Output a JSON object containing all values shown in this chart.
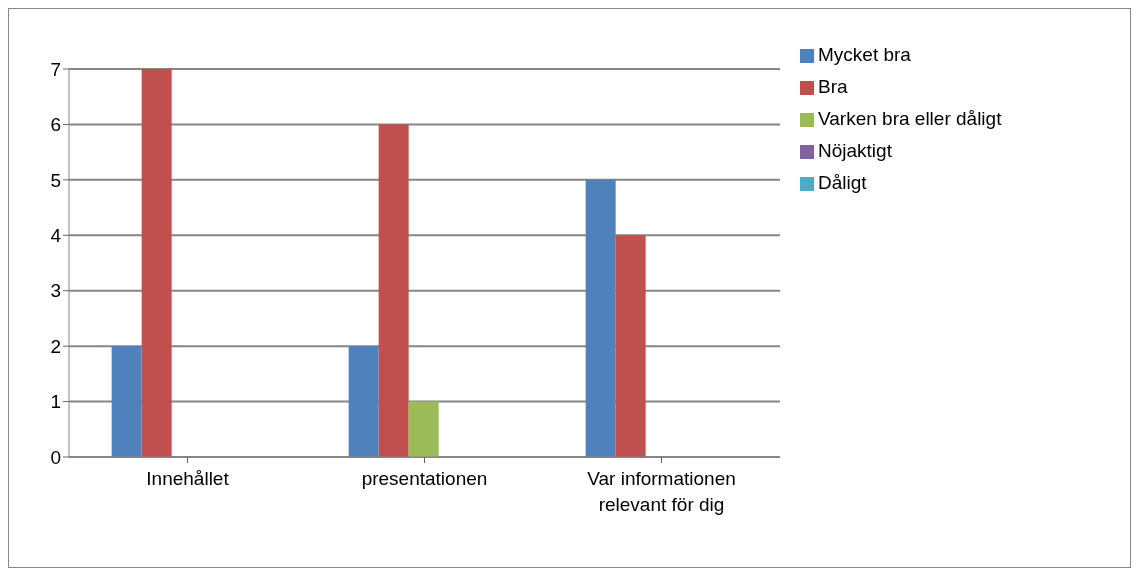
{
  "chart_data": {
    "type": "bar",
    "categories": [
      "Innehållet",
      "presentationen",
      "Var informationen relevant för dig"
    ],
    "series": [
      {
        "name": "Mycket bra",
        "color": "#4f81bd",
        "values": [
          2,
          2,
          5
        ]
      },
      {
        "name": "Bra",
        "color": "#c0504d",
        "values": [
          7,
          6,
          4
        ]
      },
      {
        "name": "Varken bra eller dåligt",
        "color": "#9bbb59",
        "values": [
          0,
          1,
          0
        ]
      },
      {
        "name": "Nöjaktigt",
        "color": "#8064a2",
        "values": [
          0,
          0,
          0
        ]
      },
      {
        "name": "Dåligt",
        "color": "#4bacc6",
        "values": [
          0,
          0,
          0
        ]
      }
    ],
    "ylim": [
      0,
      7
    ],
    "yticks": [
      0,
      1,
      2,
      3,
      4,
      5,
      6,
      7
    ],
    "grid": "y",
    "legend": "right"
  }
}
